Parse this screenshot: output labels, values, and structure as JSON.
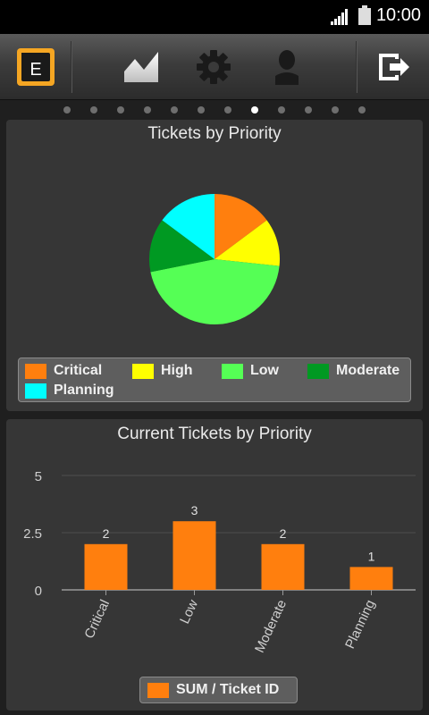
{
  "status_bar": {
    "time": "10:00"
  },
  "toolbar": {
    "icons": [
      "app-logo-icon",
      "chart-icon",
      "gear-icon",
      "user-icon",
      "logout-icon"
    ],
    "logo_letter": "E",
    "accent": "#f5a623"
  },
  "pager": {
    "count": 12,
    "active_index": 7
  },
  "pie_panel": {
    "title": "Tickets by Priority",
    "legend": [
      {
        "label": "Critical",
        "color": "#ff7f0e"
      },
      {
        "label": "High",
        "color": "#ffff00"
      },
      {
        "label": "Low",
        "color": "#55ff55"
      },
      {
        "label": "Moderate",
        "color": "#009922"
      },
      {
        "label": "Planning",
        "color": "#00ffff"
      }
    ]
  },
  "bar_panel": {
    "title": "Current Tickets by Priority",
    "legend_label": "SUM / Ticket ID",
    "legend_color": "#ff7f0e"
  },
  "chart_data": [
    {
      "type": "pie",
      "title": "Tickets by Priority",
      "categories": [
        "Critical",
        "High",
        "Low",
        "Moderate",
        "Planning"
      ],
      "values": [
        2,
        1.6,
        6.1,
        1.8,
        2
      ],
      "colors": [
        "#ff7f0e",
        "#ffff00",
        "#55ff55",
        "#009922",
        "#00ffff"
      ],
      "legend": "bottom"
    },
    {
      "type": "bar",
      "title": "Current Tickets by Priority",
      "categories": [
        "Critical",
        "Low",
        "Moderate",
        "Planning"
      ],
      "series": [
        {
          "name": "SUM / Ticket ID",
          "values": [
            2,
            3,
            2,
            1
          ],
          "color": "#ff7f0e"
        }
      ],
      "yticks": [
        "0",
        "2.5",
        "5"
      ],
      "ylim": [
        0,
        5
      ],
      "grid": true,
      "legend": "bottom"
    }
  ]
}
